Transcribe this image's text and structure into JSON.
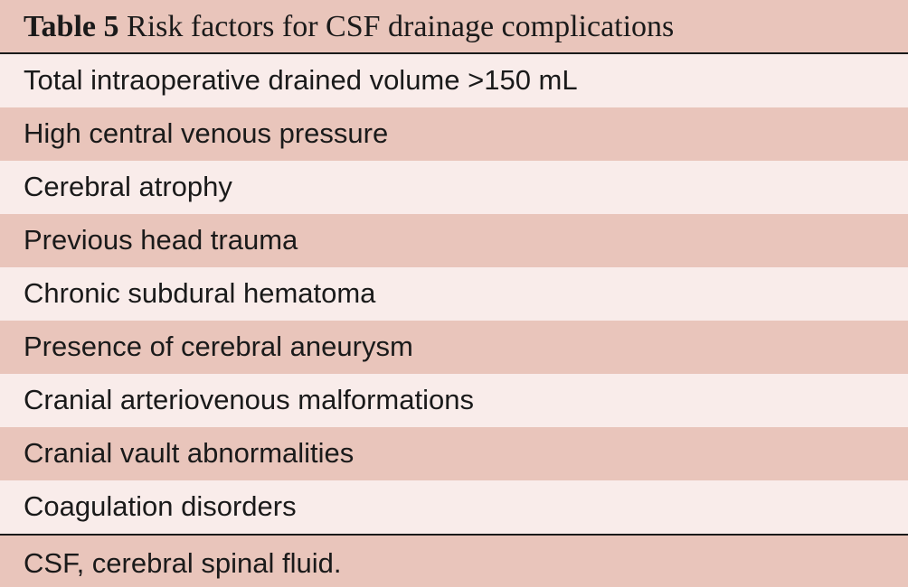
{
  "table": {
    "caption_label": "Table 5",
    "caption_title": "Risk factors for CSF drainage complications",
    "rows": [
      "Total intraoperative drained volume >150 mL",
      "High central venous pressure",
      "Cerebral atrophy",
      "Previous head trauma",
      "Chronic subdural hematoma",
      "Presence of cerebral aneurysm",
      "Cranial arteriovenous malformations",
      "Cranial vault abnormalities",
      "Coagulation disorders"
    ],
    "footnote": "CSF, cerebral spinal fluid.",
    "colors": {
      "band_dark": "#e9c5bb",
      "band_light": "#f9ecea",
      "rule": "#1a1a1a"
    }
  }
}
